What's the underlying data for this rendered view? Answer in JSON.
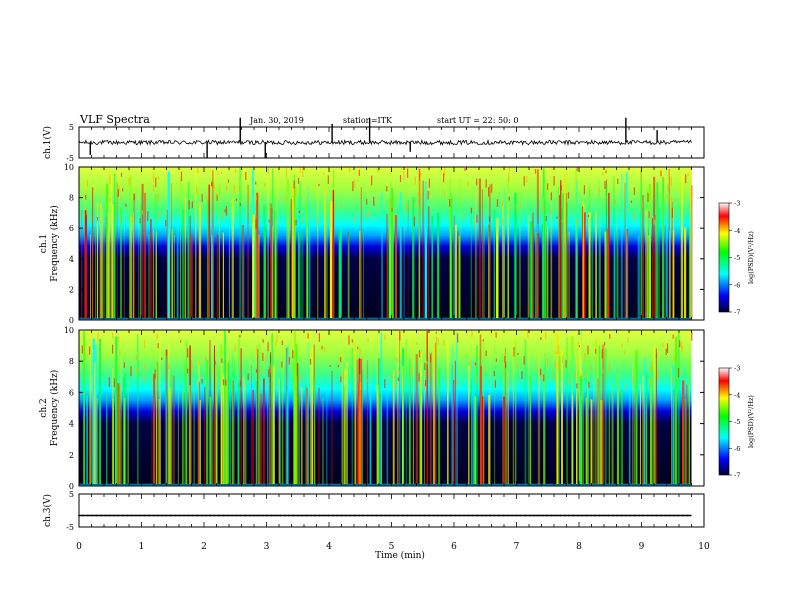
{
  "header": {
    "title": "VLF Spectra",
    "date": "Jan. 30, 2019",
    "station": "station=ITK",
    "start_ut": "start UT =  22: 50: 0"
  },
  "chart_data": [
    {
      "type": "line",
      "ylabel": "ch.1(V)",
      "ylim": [
        -5,
        5
      ],
      "yticks": [
        "5",
        "-5"
      ],
      "x": [
        0,
        0.5,
        1,
        1.5,
        2,
        2.5,
        3,
        3.5,
        4,
        4.5,
        5,
        5.5,
        6,
        6.5,
        7,
        7.5,
        8,
        8.5,
        9,
        9.5,
        9.8
      ],
      "values": [
        0,
        0,
        0.1,
        0,
        0,
        0,
        0.1,
        0,
        0,
        0,
        0,
        0,
        0,
        0,
        0,
        0,
        0,
        0,
        0,
        0,
        0
      ],
      "spikes": [
        {
          "x": 0.18,
          "y": -4
        },
        {
          "x": 2.05,
          "y": -5
        },
        {
          "x": 2.58,
          "y": 8
        },
        {
          "x": 2.98,
          "y": -5
        },
        {
          "x": 4.05,
          "y": 6
        },
        {
          "x": 4.65,
          "y": 8
        },
        {
          "x": 5.3,
          "y": -3
        },
        {
          "x": 8.75,
          "y": 8
        },
        {
          "x": 9.25,
          "y": 4
        }
      ]
    },
    {
      "type": "heatmap",
      "ylabel": "ch.1 Frequency (kHz)",
      "ylim": [
        0,
        10
      ],
      "yticks": [
        "0",
        "2",
        "4",
        "6",
        "8",
        "10"
      ],
      "colorbar": {
        "label": "log(PSD)(V²/Hz)",
        "range": [
          -7,
          -3
        ],
        "ticks": [
          "-3",
          "-4",
          "-5",
          "-6",
          "-7"
        ],
        "colors": [
          "#000033",
          "#0000ff",
          "#00ffff",
          "#00ff00",
          "#ffff00",
          "#ff0000",
          "#ffffff"
        ]
      }
    },
    {
      "type": "heatmap",
      "ylabel": "ch.2 Frequency (kHz)",
      "ylim": [
        0,
        10
      ],
      "yticks": [
        "0",
        "2",
        "4",
        "6",
        "8",
        "10"
      ],
      "colorbar": {
        "label": "log(PSD)(V²/Hz)",
        "range": [
          -7,
          -3
        ],
        "ticks": [
          "-3",
          "-4",
          "-5",
          "-6",
          "-7"
        ],
        "colors": [
          "#000033",
          "#0000ff",
          "#00ffff",
          "#00ff00",
          "#ffff00",
          "#ff0000",
          "#ffffff"
        ]
      }
    },
    {
      "type": "line",
      "ylabel": "ch.3(V)",
      "ylim": [
        -5,
        5
      ],
      "yticks": [
        "5",
        "-5"
      ],
      "x": [
        0,
        9.8
      ],
      "values": [
        -1.5,
        -1.5
      ]
    }
  ],
  "xaxis": {
    "label": "Time (min)",
    "range": [
      0,
      10
    ],
    "ticks": [
      "0",
      "1",
      "2",
      "3",
      "4",
      "5",
      "6",
      "7",
      "8",
      "9",
      "10"
    ]
  }
}
